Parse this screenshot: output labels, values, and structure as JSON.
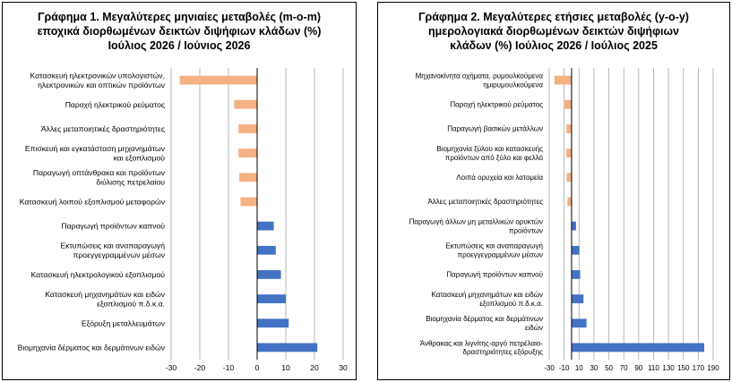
{
  "colors": {
    "positive": "#4472C4",
    "negative": "#F4B183",
    "grid": "#A6A6A6",
    "axis": "#000000"
  },
  "chart_data": [
    {
      "type": "bar",
      "orientation": "horizontal",
      "title_lines": [
        "Γράφημα 1. Μεγαλύτερες μηνιαίες μεταβολές (m-o-m)",
        "εποχικά διορθωμένων δεικτών διψήφιων κλάδων (%)",
        "Ιούλιος 2026 / Ιούνιος 2026"
      ],
      "categories": [
        [
          "Κατασκευή ηλεκτρονικών υπολογιστών,",
          "ηλεκτρονικών και οπτικών προϊόντων"
        ],
        [
          "Παροχή ηλεκτρικού ρεύματος"
        ],
        [
          "Άλλες μεταποιητικές δραστηριότητες"
        ],
        [
          "Επισκευή και εγκατάσταση μηχανημάτων",
          "και εξοπλισμού"
        ],
        [
          "Παραγωγή οπτάνθρακα και προϊόντων",
          "διύλισης πετρελαίου"
        ],
        [
          "Κατασκευή λοιπού εξοπλισμού μεταφορών"
        ],
        [
          "Παραγωγή προϊόντων καπνού"
        ],
        [
          "Εκτυπώσεις και αναπαραγωγή",
          "προεγγεγραμμένων μέσων"
        ],
        [
          "Κατασκευή ηλεκτρολογικού εξοπλισμού"
        ],
        [
          "Κατασκευή μηχανημάτων και ειδών",
          "εξοπλισμού π.δ.κ.α."
        ],
        [
          "Εξόρυξη μεταλλευμάτων"
        ],
        [
          "Βιομηχανία δέρματος και δερμάτινων ειδών"
        ]
      ],
      "values": [
        -27.0,
        -8.0,
        -6.5,
        -6.5,
        -6.2,
        -5.8,
        5.8,
        6.5,
        8.3,
        10.0,
        11.0,
        21.0
      ],
      "xlim": [
        -30,
        30
      ],
      "xticks": [
        -30,
        -20,
        -10,
        0,
        10,
        20,
        30
      ],
      "grid": true
    },
    {
      "type": "bar",
      "orientation": "horizontal",
      "title_lines": [
        "Γράφημα 2. Μεγαλύτερες ετήσιες μεταβολές (y-o-y)",
        "ημερολογιακά διορθωμένων δεικτών διψήφιων",
        "κλάδων (%) Ιούλιος 2026 / Ιούλιος  2025"
      ],
      "categories": [
        [
          "Μηχανοκίνητα οχήματα, ρυμουλκούμενα",
          "ημιρυμουλκούμενα"
        ],
        [
          "Παροχή ηλεκτρικού ρεύματος"
        ],
        [
          "Παραγωγή βασικών μετάλλων"
        ],
        [
          "Βιομηχανία ξύλου και κατασκευής",
          "προϊόντων από ξύλο και φελλό"
        ],
        [
          "Λοιπά ορυχεία και λατομεία"
        ],
        [
          "Άλλες μεταποιητικές δραστηριότητες"
        ],
        [
          "Παραγωγή άλλων μη μεταλλικών ορυκτών",
          "προϊόντων"
        ],
        [
          "Εκτυπώσεις και αναπαραγωγή",
          "προεγγεγραμμένων μέσων"
        ],
        [
          "Παραγωγή προϊόντων καπνού"
        ],
        [
          "Κατασκευή μηχανημάτων και ειδών",
          "εξοπλισμού π.δ.κ.α."
        ],
        [
          "Βιομηχανία δέρματος και δερμάτινων",
          "ειδών"
        ],
        [
          "Άνθρακας και λιγνίτης-αργό πετρέλαιο-",
          "δραστηριότητες εξόρυξης"
        ]
      ],
      "values": [
        -23.0,
        -10.0,
        -7.0,
        -7.0,
        -6.5,
        -5.5,
        6.0,
        10.5,
        11.5,
        16.0,
        20.0,
        178.0
      ],
      "xlim": [
        -30,
        190
      ],
      "xticks": [
        -30,
        -10,
        10,
        30,
        50,
        70,
        90,
        110,
        130,
        150,
        170,
        190
      ],
      "grid": true
    }
  ]
}
